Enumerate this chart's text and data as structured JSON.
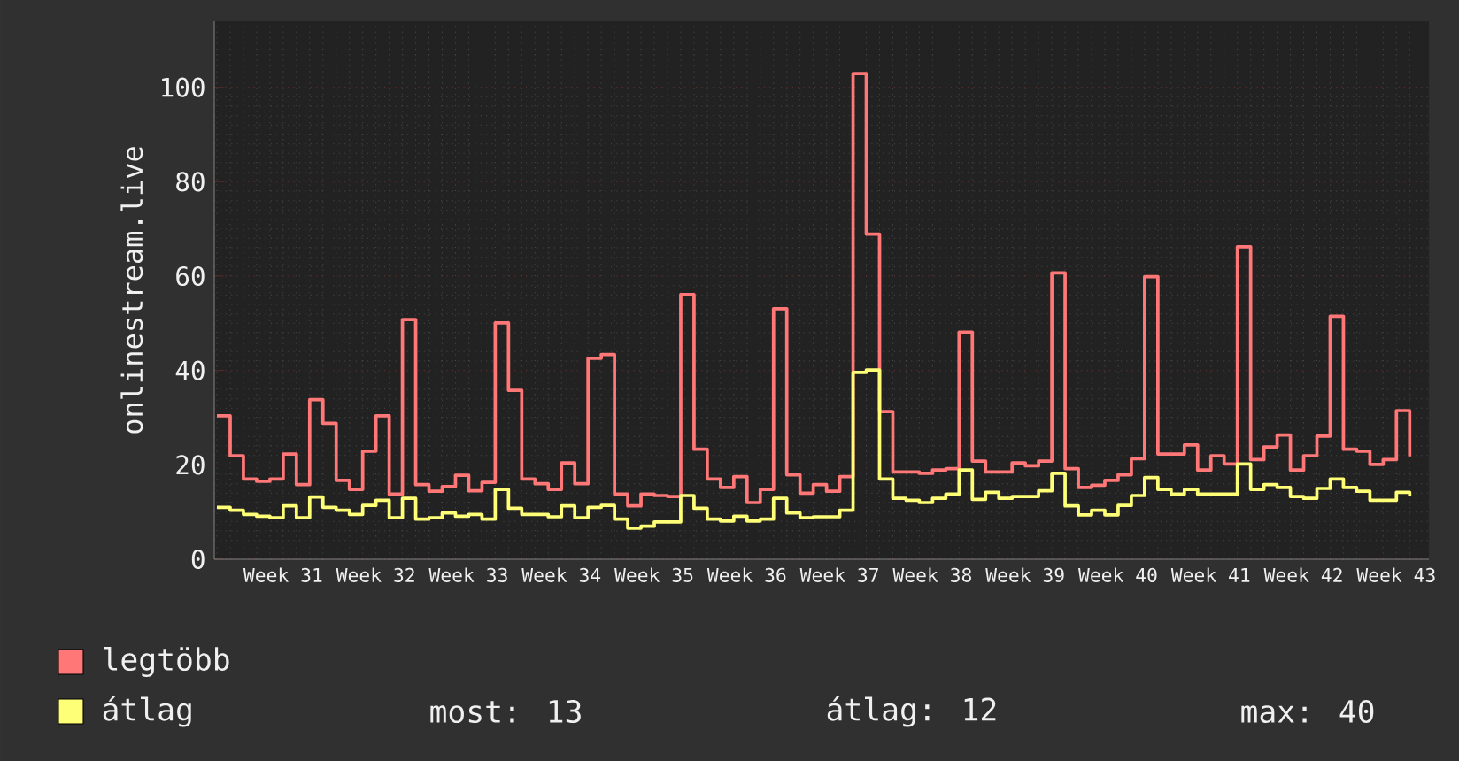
{
  "chart_data": {
    "type": "step",
    "ylabel": "onlinestream.live",
    "categories": [
      null,
      null,
      null,
      null,
      null,
      "Week 31",
      null,
      null,
      null,
      null,
      null,
      null,
      "Week 32",
      null,
      null,
      null,
      null,
      null,
      null,
      "Week 33",
      null,
      null,
      null,
      null,
      null,
      null,
      "Week 34",
      null,
      null,
      null,
      null,
      null,
      null,
      "Week 35",
      null,
      null,
      null,
      null,
      null,
      null,
      "Week 36",
      null,
      null,
      null,
      null,
      null,
      null,
      "Week 37",
      null,
      null,
      null,
      null,
      null,
      null,
      "Week 38",
      null,
      null,
      null,
      null,
      null,
      null,
      "Week 39",
      null,
      null,
      null,
      null,
      null,
      null,
      "Week 40",
      null,
      null,
      null,
      null,
      null,
      null,
      "Week 41",
      null,
      null,
      null,
      null,
      null,
      null,
      "Week 42",
      null,
      null,
      null,
      null,
      null,
      null,
      "Week 43",
      null
    ],
    "series": [
      {
        "name": "legtöbb",
        "color": "#ff7777",
        "values": [
          30.4,
          21.9,
          17.0,
          16.5,
          17.0,
          22.3,
          15.8,
          33.8,
          28.8,
          16.7,
          14.8,
          22.9,
          30.4,
          13.8,
          50.8,
          15.8,
          14.4,
          15.4,
          17.8,
          14.5,
          16.3,
          50.1,
          35.8,
          17.0,
          16.0,
          14.8,
          20.4,
          16.0,
          42.6,
          43.4,
          13.8,
          11.3,
          13.8,
          13.5,
          13.3,
          56.1,
          23.3,
          17.0,
          15.2,
          17.5,
          12.0,
          14.8,
          53.1,
          17.9,
          14.0,
          15.8,
          14.4,
          17.5,
          102.9,
          68.9,
          31.3,
          18.5,
          18.5,
          18.2,
          18.9,
          19.2,
          48.1,
          20.8,
          18.5,
          18.5,
          20.4,
          19.8,
          20.8,
          60.7,
          19.2,
          15.2,
          15.7,
          16.7,
          17.9,
          21.3,
          59.9,
          22.3,
          22.3,
          24.2,
          18.9,
          21.9,
          20.2,
          66.2,
          21.1,
          23.8,
          26.3,
          18.9,
          21.9,
          26.1,
          51.5,
          23.3,
          22.9,
          20.1,
          21.1,
          31.5,
          21.8
        ]
      },
      {
        "name": "átlag",
        "color": "#ffff77",
        "values": [
          11.0,
          10.4,
          9.5,
          9.1,
          8.8,
          11.3,
          8.8,
          13.2,
          11.0,
          10.4,
          9.5,
          11.4,
          12.5,
          8.8,
          12.9,
          8.5,
          8.8,
          9.8,
          9.1,
          9.5,
          8.5,
          14.8,
          10.8,
          9.5,
          9.5,
          9.0,
          11.3,
          8.8,
          11.0,
          11.4,
          8.5,
          6.6,
          7.0,
          7.9,
          7.9,
          13.5,
          10.8,
          8.5,
          8.1,
          9.1,
          8.1,
          8.5,
          12.9,
          9.8,
          8.8,
          9.0,
          9.0,
          10.4,
          39.6,
          40.1,
          17.0,
          12.9,
          12.5,
          12.0,
          12.9,
          13.8,
          18.9,
          12.7,
          14.2,
          12.9,
          13.3,
          13.3,
          14.5,
          18.2,
          11.3,
          9.4,
          10.4,
          9.4,
          11.4,
          13.5,
          17.3,
          14.8,
          13.8,
          14.8,
          13.8,
          13.8,
          13.8,
          20.2,
          14.8,
          15.8,
          15.2,
          13.3,
          12.9,
          15.0,
          17.0,
          15.2,
          14.4,
          12.5,
          12.5,
          14.2,
          13.3
        ]
      }
    ],
    "ylim": [
      0,
      114
    ],
    "yticks": [
      0,
      20,
      40,
      60,
      80,
      100
    ],
    "grid": true,
    "legend": "bottom",
    "annotations": [
      "most: 13",
      "átlag: 12",
      "max: 40"
    ]
  }
}
